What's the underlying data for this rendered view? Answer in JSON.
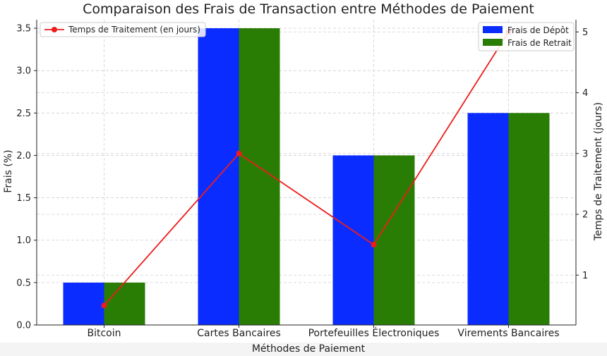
{
  "chart_data": {
    "type": "bar",
    "title": "Comparaison des Frais de Transaction entre Méthodes de Paiement",
    "xlabel": "Méthodes de Paiement",
    "ylabel": "Frais (%)",
    "y2label": "Temps de Traitement (jours)",
    "categories": [
      "Bitcoin",
      "Cartes Bancaires",
      "Portefeuilles Électroniques",
      "Virements Bancaires"
    ],
    "series": [
      {
        "name": "Frais de Dépôt",
        "type": "bar",
        "color": "#0b2cff",
        "values": [
          0.5,
          3.5,
          2.0,
          2.5
        ]
      },
      {
        "name": "Frais de Retrait",
        "type": "bar",
        "color": "#2a7d04",
        "values": [
          0.5,
          3.5,
          2.0,
          2.5
        ]
      },
      {
        "name": "Temps de Traitement (en jours)",
        "type": "line",
        "axis": "right",
        "color": "#ee1c1c",
        "values": [
          0.5,
          3.0,
          1.5,
          5.0
        ]
      }
    ],
    "ylim": [
      0,
      3.6
    ],
    "y2lim": [
      0.18,
      5.2
    ],
    "yticks": [
      "0.0",
      "0.5",
      "1.0",
      "1.5",
      "2.0",
      "2.5",
      "3.0",
      "3.5"
    ],
    "y2ticks": [
      "1",
      "2",
      "3",
      "4",
      "5"
    ],
    "grid": true,
    "legend_bars": "top-right",
    "legend_line": "top-left"
  }
}
